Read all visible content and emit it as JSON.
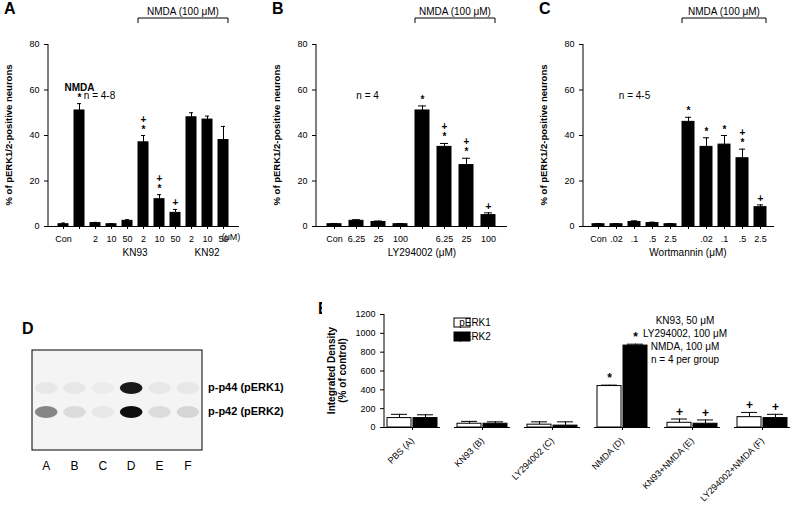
{
  "chart_data": [
    {
      "type": "bar",
      "title": "A",
      "y_label": "% of pERK1/2-positive neurons",
      "categories": [
        "Con",
        null,
        "2",
        "10",
        "50",
        "2",
        "10",
        "50",
        "2",
        "10",
        "50"
      ],
      "values": [
        1,
        51,
        1.5,
        1,
        2.5,
        37,
        12,
        6,
        48,
        47,
        38
      ],
      "errors": [
        0.5,
        3,
        0.3,
        0.3,
        0.5,
        3,
        2,
        1.5,
        2,
        1.5,
        6
      ],
      "annotations": [
        null,
        "NMDA\n*",
        null,
        null,
        null,
        "+\n*",
        "+\n*",
        "+",
        null,
        null,
        null
      ],
      "color": "#000000",
      "ylim": [
        0,
        80
      ],
      "yticks": [
        0,
        20,
        40,
        60,
        80
      ],
      "groups": [
        {
          "label": "KN93",
          "from": 2,
          "to": 7
        },
        {
          "label": "KN92",
          "from": 8,
          "to": 10
        }
      ],
      "brackets": [
        {
          "label": "NMDA (100 μM)",
          "from": 5,
          "to": 10
        }
      ],
      "x_note": "(μM)",
      "note": "n = 4-8"
    },
    {
      "type": "bar",
      "title": "B",
      "y_label": "% of pERK1/2-positive neurons",
      "categories": [
        "Con",
        "6.25",
        "25",
        "100",
        null,
        "6.25",
        "25",
        "100"
      ],
      "values": [
        1,
        2.5,
        2,
        1,
        51,
        35,
        27,
        5
      ],
      "errors": [
        0.3,
        0.5,
        0.4,
        0.3,
        2,
        1.5,
        3,
        1
      ],
      "annotations": [
        null,
        null,
        null,
        null,
        "*",
        "+\n*",
        "+\n*",
        "+"
      ],
      "color": "#000000",
      "ylim": [
        0,
        80
      ],
      "yticks": [
        0,
        20,
        40,
        60,
        80
      ],
      "groups": [
        {
          "label": "LY294002 (μM)",
          "from": 1,
          "to": 7
        }
      ],
      "brackets": [
        {
          "label": "NMDA (100 μM)",
          "from": 4,
          "to": 7
        }
      ],
      "note": "n = 4"
    },
    {
      "type": "bar",
      "title": "C",
      "y_label": "% of pERK1/2-positive neurons",
      "categories": [
        "Con",
        ".02",
        ".1",
        ".5",
        "2.5",
        null,
        ".02",
        ".1",
        ".5",
        "2.5"
      ],
      "values": [
        1,
        1,
        2,
        1.5,
        1,
        46,
        35,
        36,
        30,
        8.5
      ],
      "errors": [
        0.3,
        0.3,
        0.5,
        0.4,
        0.3,
        2,
        4,
        4,
        4,
        1
      ],
      "annotations": [
        null,
        null,
        null,
        null,
        null,
        "*",
        "*",
        "*",
        "+\n*",
        "+"
      ],
      "color": "#000000",
      "ylim": [
        0,
        80
      ],
      "yticks": [
        0,
        20,
        40,
        60,
        80
      ],
      "groups": [
        {
          "label": "Wortmannin (μM)",
          "from": 1,
          "to": 9
        }
      ],
      "brackets": [
        {
          "label": "NMDA (100 μM)",
          "from": 5,
          "to": 9
        }
      ],
      "note": "n = 4-5"
    },
    {
      "type": "blot",
      "title": "D",
      "lanes": [
        "A",
        "B",
        "C",
        "D",
        "E",
        "F"
      ],
      "bands": [
        {
          "label": "p-p44 (pERK1)",
          "intensity": [
            0.05,
            0.05,
            0.03,
            0.9,
            0.05,
            0.05
          ]
        },
        {
          "label": "p-p42 (pERK2)",
          "intensity": [
            0.45,
            0.1,
            0.05,
            0.95,
            0.1,
            0.12
          ]
        }
      ]
    },
    {
      "type": "bar",
      "title": "E",
      "y_label": "Integrated Density\n(% of control)",
      "categories": [
        "PBS (A)",
        "KN93 (B)",
        "LY294002 (C)",
        "NMDA (D)",
        "KN93+NMDA (E)",
        "LY294002+NMDA (F)"
      ],
      "series": [
        {
          "name": "pERK1",
          "color": "#ffffff",
          "values": [
            100,
            40,
            30,
            440,
            50,
            110
          ],
          "errors": [
            40,
            25,
            30,
            10,
            40,
            50
          ],
          "annotations": [
            null,
            null,
            null,
            "*",
            "+",
            "+"
          ]
        },
        {
          "name": "pERK2",
          "color": "#000000",
          "values": [
            100,
            40,
            20,
            870,
            40,
            100
          ],
          "errors": [
            35,
            20,
            40,
            15,
            40,
            40
          ],
          "annotations": [
            null,
            null,
            null,
            "*",
            "+",
            "+"
          ]
        }
      ],
      "ylim": [
        0,
        1200
      ],
      "yticks": [
        0,
        200,
        400,
        600,
        800,
        1000,
        1200
      ],
      "legend": "top-left",
      "notes": [
        "KN93, 50 μM",
        "LY294002, 100 μM",
        "NMDA, 100 μM",
        "n = 4 per group"
      ]
    }
  ]
}
